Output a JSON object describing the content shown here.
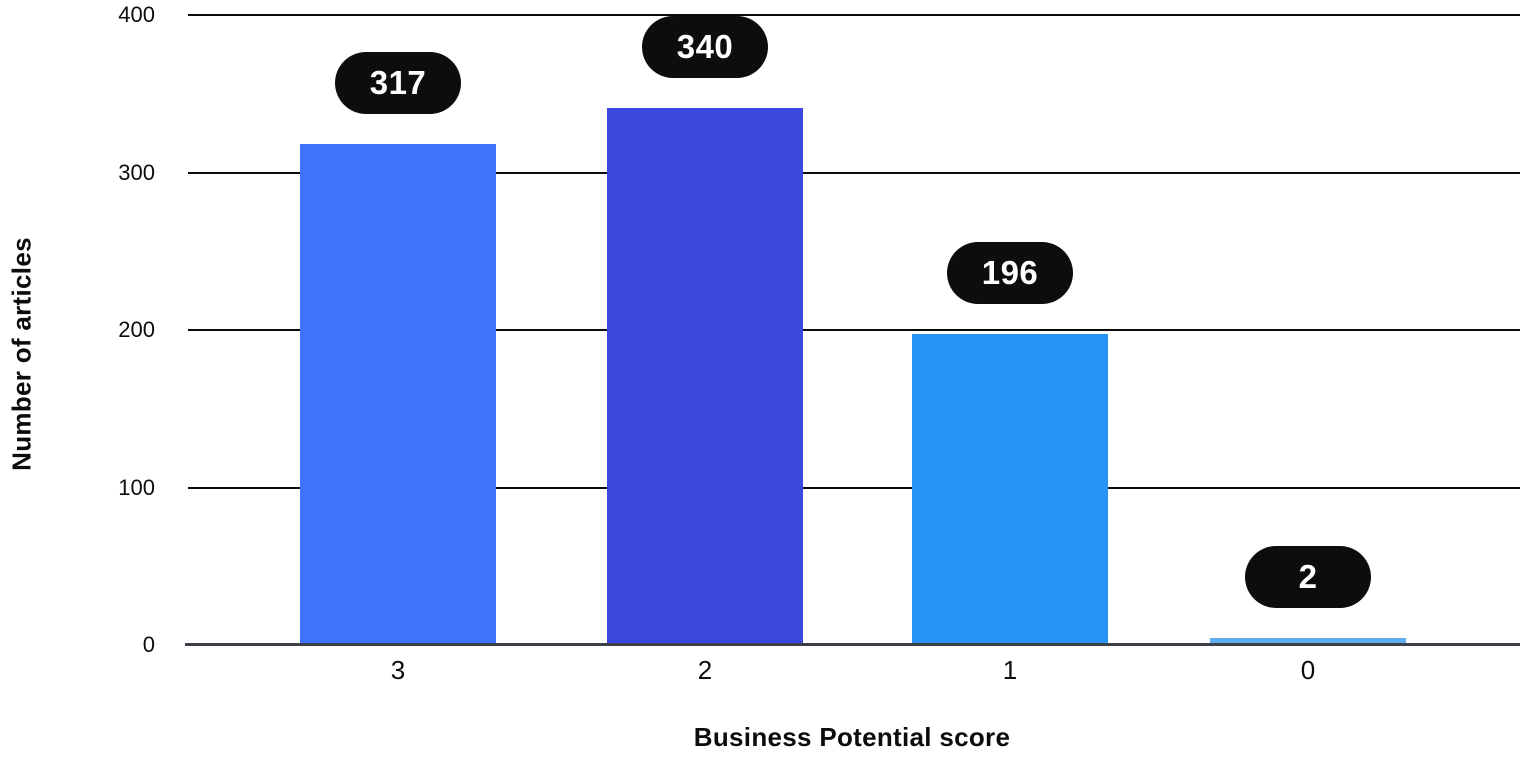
{
  "chart_data": {
    "type": "bar",
    "categories": [
      "3",
      "2",
      "1",
      "0"
    ],
    "values": [
      317,
      340,
      196,
      2
    ],
    "data_labels": [
      "317",
      "340",
      "196",
      "2"
    ],
    "bar_colors": [
      "#3d74fb",
      "#3a48de",
      "#2793f4",
      "#60acf1"
    ],
    "xlabel": "Business Potential score",
    "ylabel": "Number of articles",
    "yticks": [
      0,
      100,
      200,
      300,
      400
    ],
    "ylim": [
      0,
      400
    ],
    "grid": "horizontal gridlines on",
    "legend_position": "none",
    "gridline_color": "#0a0a0a",
    "baseline_color": "#3c4147",
    "label_pill_bg": "#0d0d0d",
    "label_pill_text_color": "#ffffff",
    "text_color": "#0c0c0c",
    "background_color": "#ffffff"
  }
}
